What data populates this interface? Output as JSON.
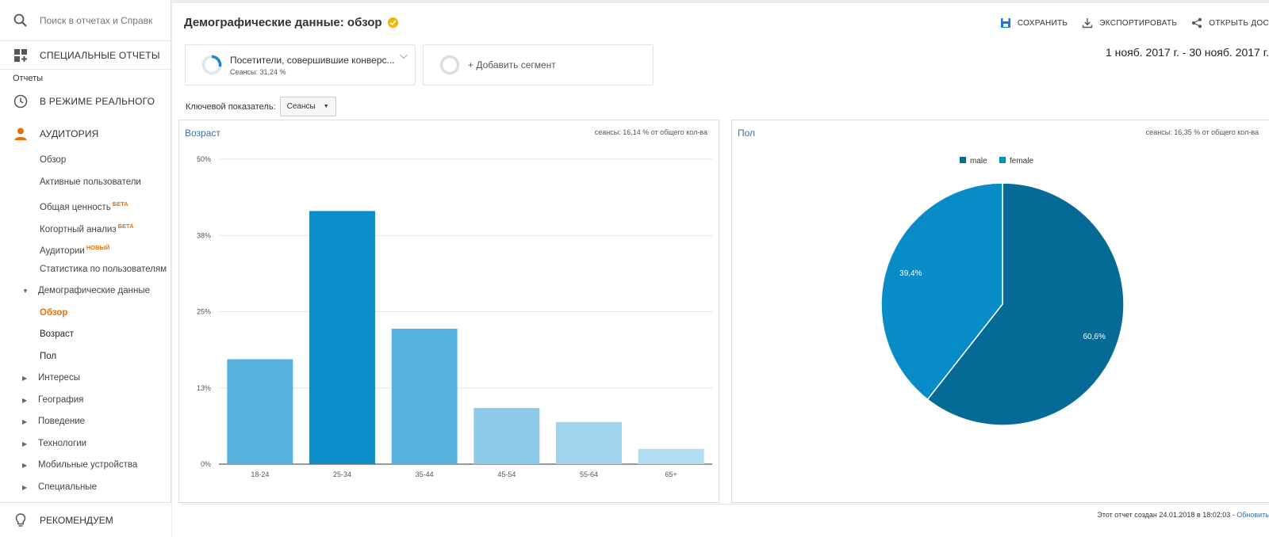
{
  "search": {
    "placeholder": "Поиск в отчетах и Справк"
  },
  "sidebar": {
    "custom_reports": "СПЕЦИАЛЬНЫЕ ОТЧЕТЫ",
    "reports_label": "Отчеты",
    "realtime": "В РЕЖИМЕ РЕАЛЬНОГО",
    "audience": "АУДИТОРИЯ",
    "audience_items": [
      {
        "label": "Обзор",
        "tag": ""
      },
      {
        "label": "Активные пользователи",
        "tag": ""
      },
      {
        "label": "Общая ценность",
        "tag": "БЕТА"
      },
      {
        "label": "Когортный анализ",
        "tag": "БЕТА"
      },
      {
        "label": "Аудитории",
        "tag": "НОВЫЙ"
      },
      {
        "label": "Статистика по пользователям",
        "tag": ""
      }
    ],
    "demographics": "Демографические данные",
    "demographics_items": [
      "Обзор",
      "Возраст",
      "Пол"
    ],
    "collapsed_sections": [
      "Интересы",
      "География",
      "Поведение",
      "Технологии",
      "Мобильные устройства",
      "Специальные"
    ],
    "recommend": "РЕКОМЕНДУЕМ"
  },
  "header": {
    "title": "Демографические данные: обзор",
    "save": "СОХРАНИТЬ",
    "export": "ЭКСПОРТИРОВАТЬ",
    "share": "ОТКРЫТЬ ДОС",
    "date_range": "1 нояб. 2017 г. - 30 нояб. 2017 г."
  },
  "segments": {
    "segment1_name": "Посетители, совершившие конверс...",
    "segment1_sub": "Сеансы: 31,24 %",
    "add_segment": "+ Добавить сегмент"
  },
  "key_metric": {
    "label": "Ключевой показатель:",
    "value": "Сеансы"
  },
  "age_panel": {
    "title": "Возраст",
    "stat": "сеансы: 16,14 % от общего кол-ва"
  },
  "gender_panel": {
    "title": "Пол",
    "stat": "сеансы: 16,35 % от общего кол-ва"
  },
  "footer": {
    "text": "Этот отчет создан 24.01.2018 в 18:02:03 - ",
    "refresh": "Обновить"
  },
  "colors": {
    "accent": "#e8710a",
    "link": "#3b6dab",
    "male": "#066a96",
    "female": "#078cc7"
  },
  "chart_data": [
    {
      "type": "bar",
      "categories": [
        "18-24",
        "25-34",
        "35-44",
        "45-54",
        "55-64",
        "65+"
      ],
      "values": [
        17.2,
        41.5,
        22.2,
        9.2,
        6.9,
        2.5
      ],
      "colors": [
        "#56b1de",
        "#0b8dc7",
        "#56b1de",
        "#8ccae8",
        "#9fd3ee",
        "#b2def2"
      ],
      "yticks": [
        "0%",
        "13%",
        "25%",
        "38%",
        "50%"
      ],
      "ylim": [
        0,
        50
      ],
      "grid": true
    },
    {
      "type": "pie",
      "labels": [
        "male",
        "female"
      ],
      "values": [
        60.6,
        39.4
      ],
      "value_labels": [
        "60,6%",
        "39,4%"
      ],
      "colors": [
        "#066a96",
        "#078cc7"
      ],
      "legend": "top"
    }
  ]
}
